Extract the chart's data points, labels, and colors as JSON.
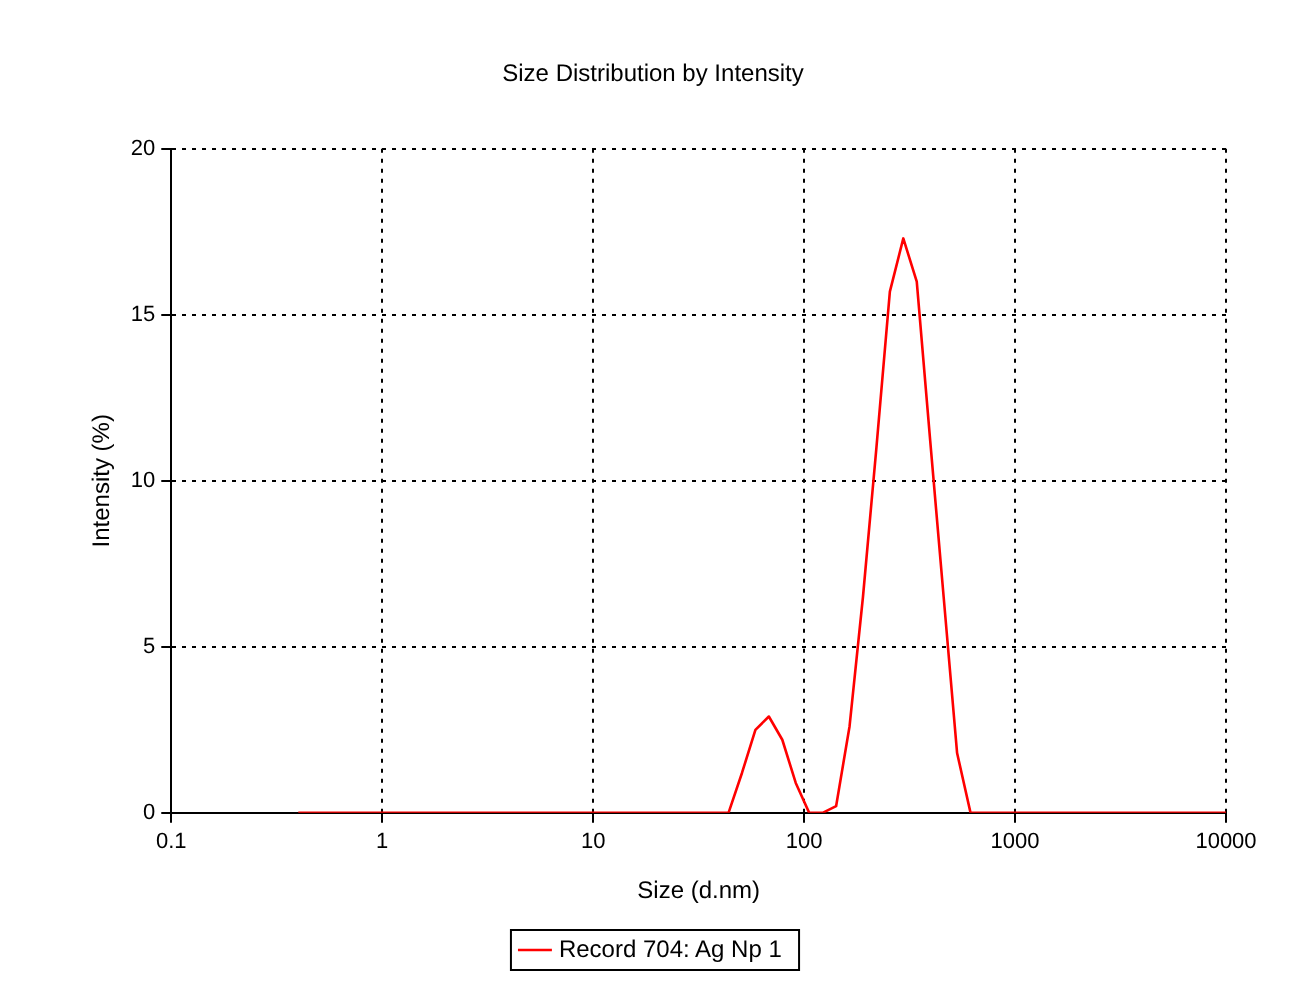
{
  "chart_data": {
    "type": "line",
    "title": "Size Distribution by Intensity",
    "xlabel": "Size (d.nm)",
    "ylabel": "Intensity (%)",
    "log": "x",
    "xlim": [
      0.1,
      10000
    ],
    "xticks": [
      0.1,
      1,
      10,
      100,
      1000,
      10000
    ],
    "ylim": [
      0,
      20
    ],
    "yticks": [
      0,
      5,
      10,
      15,
      20
    ],
    "grid": true,
    "legend": "bottom",
    "marker": "none",
    "line_style": "solid",
    "x": [
      0.4,
      43.82,
      50.75,
      58.77,
      68.06,
      78.82,
      91.28,
      105.7,
      122.4,
      141.8,
      164.2,
      190.1,
      220.2,
      255.0,
      295.3,
      342.0,
      396.1,
      458.7,
      531.2,
      615.1,
      10000
    ],
    "series": [
      {
        "name": "Record 704: Ag Np 1",
        "color": "#ff0000",
        "values": [
          0,
          0,
          1.2,
          2.5,
          2.9,
          2.2,
          0.9,
          0,
          0,
          0.2,
          2.6,
          6.5,
          11,
          15.7,
          17.3,
          16,
          11.2,
          6.5,
          1.8,
          0,
          0
        ]
      }
    ]
  }
}
